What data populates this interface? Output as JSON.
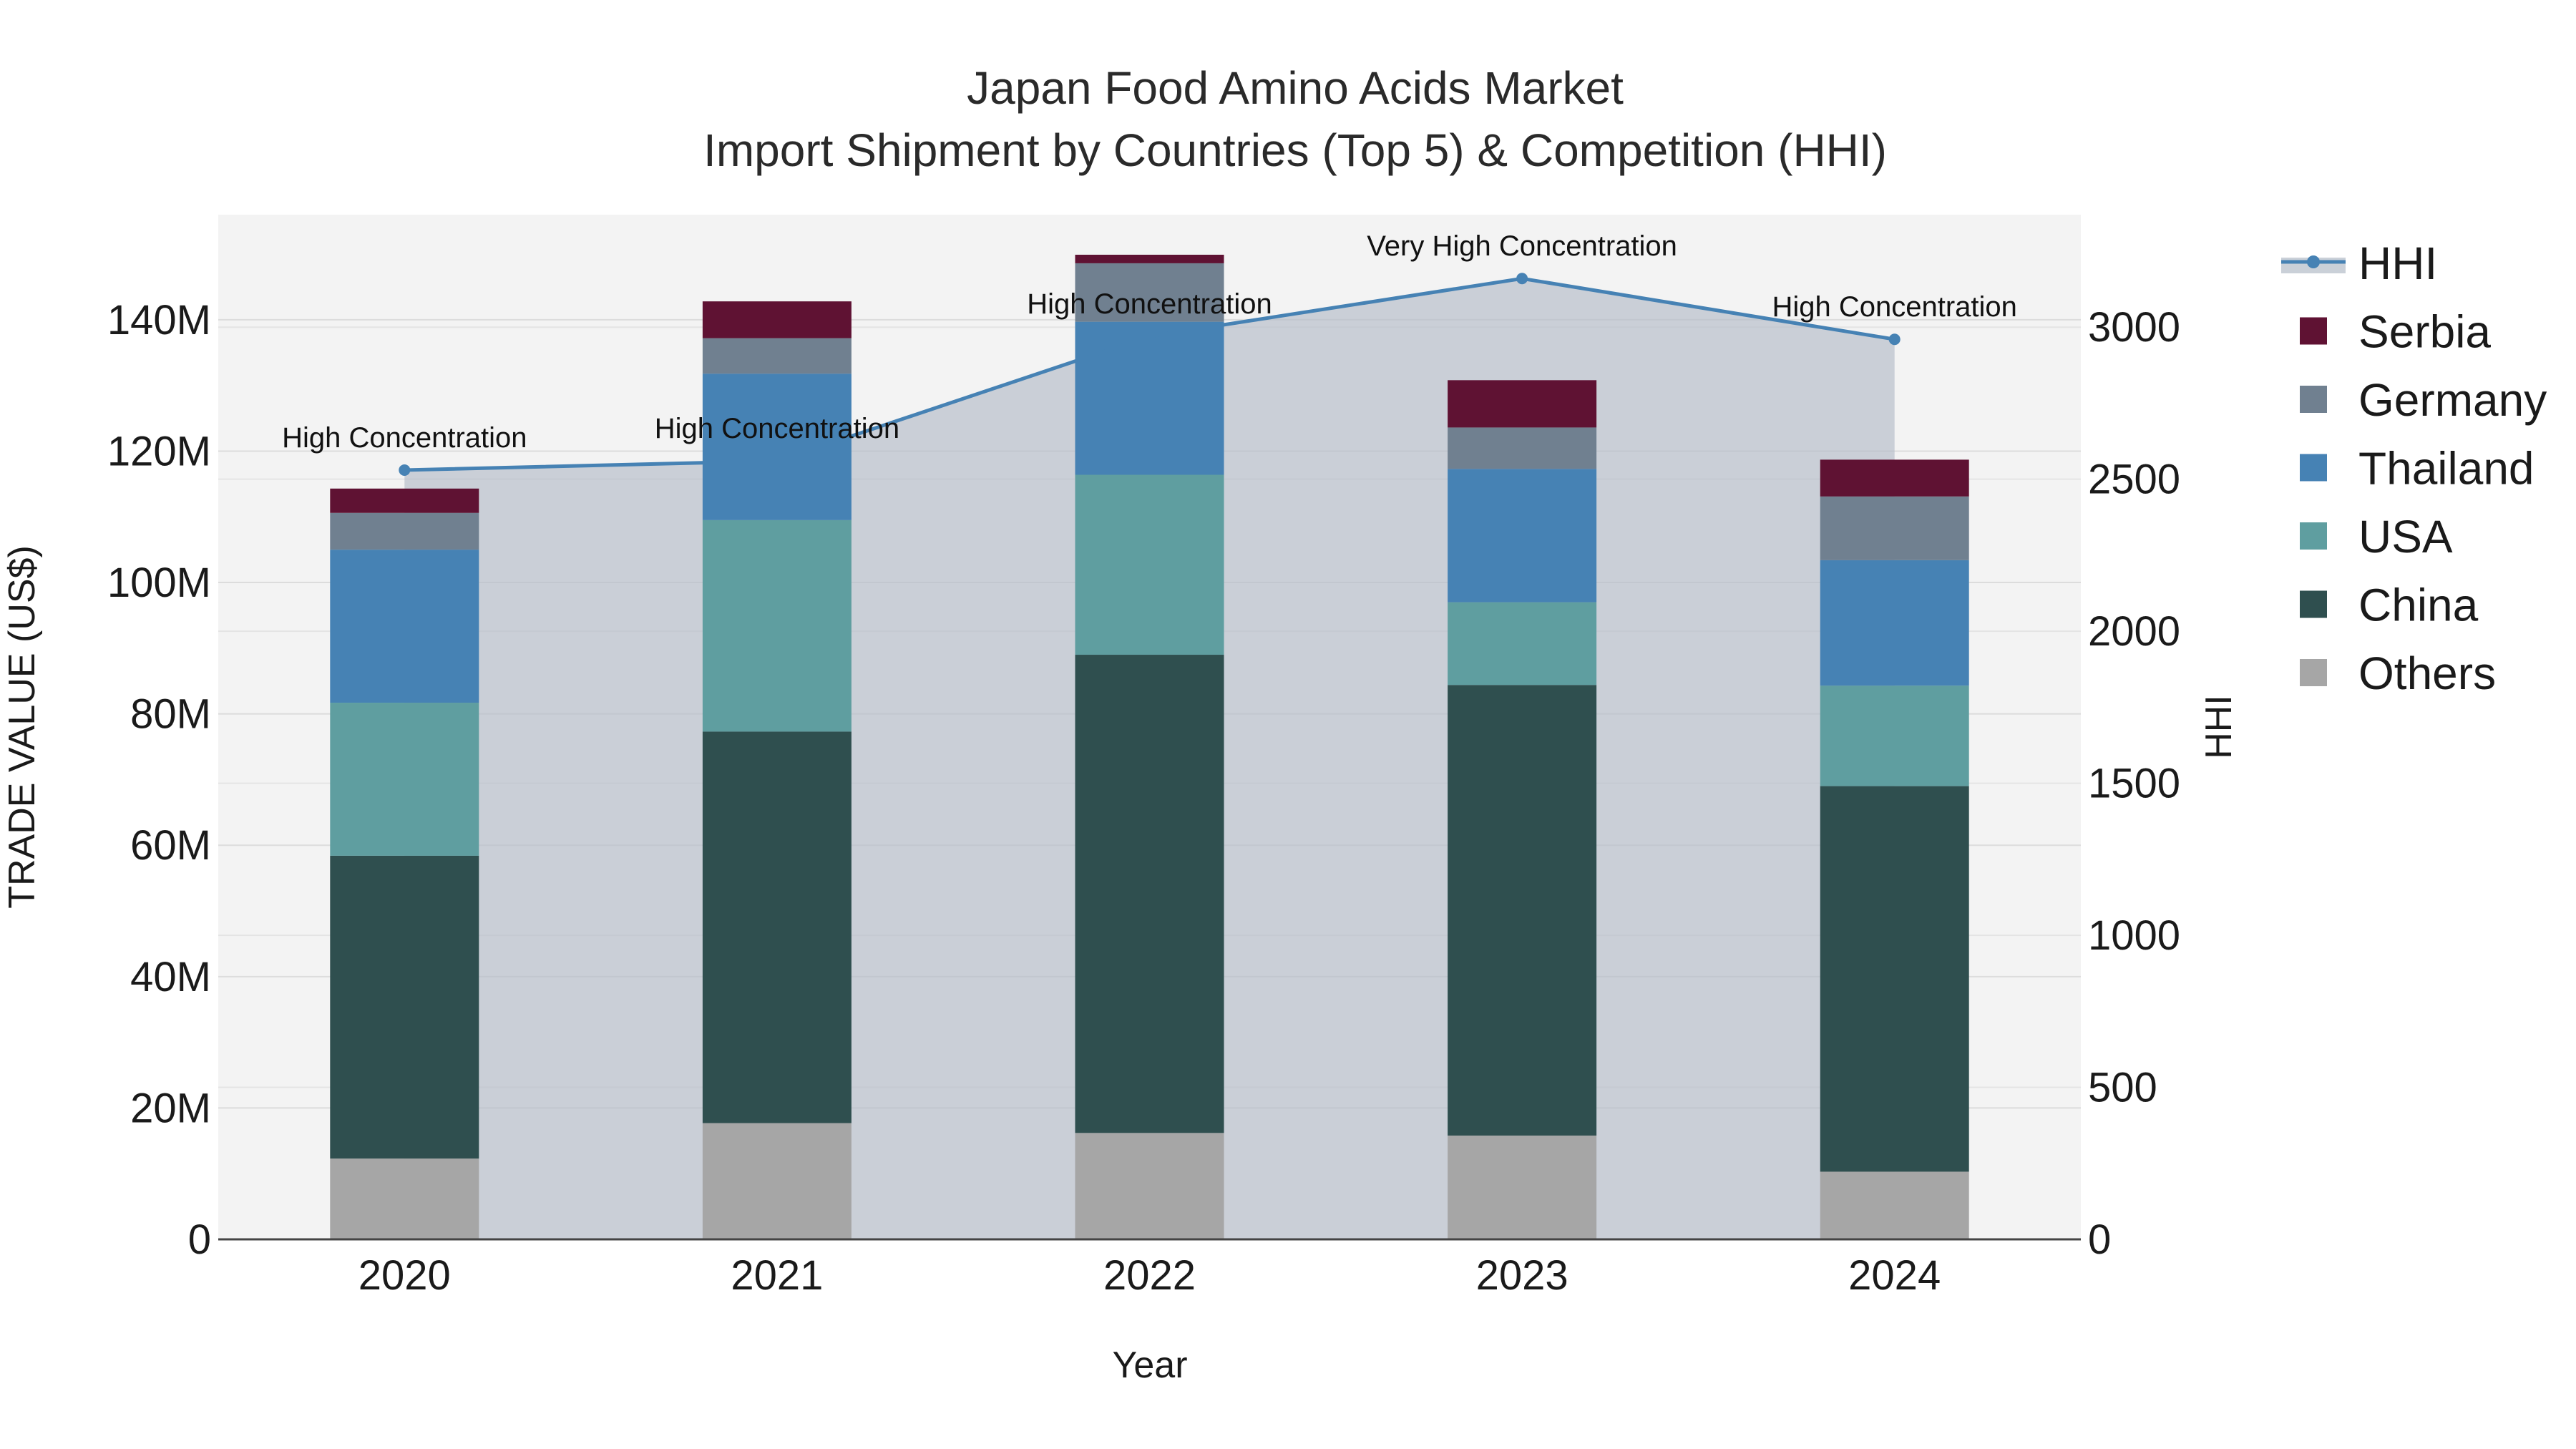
{
  "chart_data": {
    "type": "bar",
    "stacked": true,
    "title_line1": "Japan Food Amino Acids Market",
    "title_line2": "Import Shipment by Countries (Top 5) & Competition (HHI)",
    "xlabel": "Year",
    "ylabel": "TRADE VALUE (US$)",
    "y2label": "HHI",
    "categories": [
      "2020",
      "2021",
      "2022",
      "2023",
      "2024"
    ],
    "ylim": [
      0,
      156000000
    ],
    "y2lim": [
      0,
      3370
    ],
    "y_ticks": [
      0,
      20000000,
      40000000,
      60000000,
      80000000,
      100000000,
      120000000,
      140000000
    ],
    "y_tick_labels": [
      "0",
      "20M",
      "40M",
      "60M",
      "80M",
      "100M",
      "120M",
      "140M"
    ],
    "y2_ticks": [
      0,
      500,
      1000,
      1500,
      2000,
      2500,
      3000
    ],
    "y2_tick_labels": [
      "0",
      "500",
      "1000",
      "1500",
      "2000",
      "2500",
      "3000"
    ],
    "series": [
      {
        "name": "Others",
        "color": "#a6a6a6",
        "values": [
          12300000,
          17700000,
          16200000,
          15800000,
          10300000
        ]
      },
      {
        "name": "China",
        "color": "#2f4f4f",
        "values": [
          46100000,
          59600000,
          72800000,
          68600000,
          58700000
        ]
      },
      {
        "name": "USA",
        "color": "#5f9ea0",
        "values": [
          23300000,
          32200000,
          27400000,
          12600000,
          15300000
        ]
      },
      {
        "name": "Thailand",
        "color": "#4682b4",
        "values": [
          23300000,
          22300000,
          23300000,
          20300000,
          19100000
        ]
      },
      {
        "name": "Germany",
        "color": "#708090",
        "values": [
          5600000,
          5400000,
          8900000,
          6300000,
          9700000
        ]
      },
      {
        "name": "Serbia",
        "color": "#5f1233",
        "values": [
          3700000,
          5600000,
          1300000,
          7200000,
          5600000
        ]
      }
    ],
    "hhi": {
      "name": "HHI",
      "color": "#4682b4",
      "values": [
        2530,
        2560,
        2970,
        3160,
        2960
      ],
      "annotations": [
        "High Concentration",
        "High Concentration",
        "High Concentration",
        "Very High Concentration",
        "High Concentration"
      ]
    },
    "legend_order": [
      "HHI",
      "Serbia",
      "Germany",
      "Thailand",
      "USA",
      "China",
      "Others"
    ],
    "legend_position": "right"
  }
}
